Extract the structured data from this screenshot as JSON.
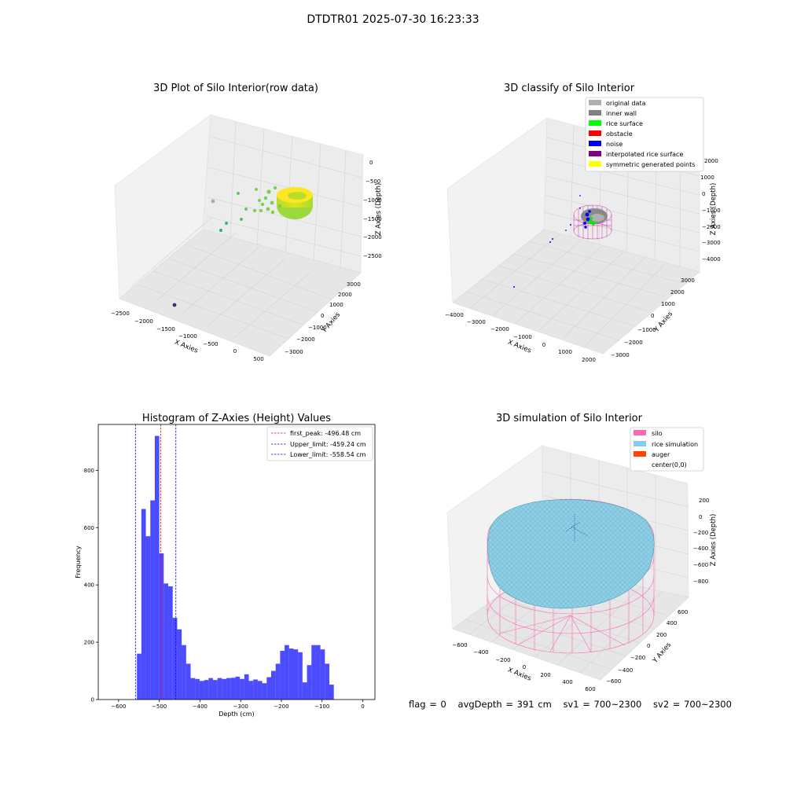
{
  "figure": {
    "suptitle": "DTDTR01 2025-07-30 16:23:33",
    "status": {
      "flag": "flag = 0",
      "avg_depth": "avgDepth = 391 cm",
      "sv1": "sv1 = 700~2300",
      "sv2": "sv2 = 700~2300"
    }
  },
  "chart_data": [
    {
      "type": "scatter",
      "title": "3D Plot of Silo Interior(row data)",
      "xlabel": "X Axies",
      "ylabel": "Y Axies",
      "zlabel": "Z Axies (Depth)",
      "x_ticks": [
        "−2500",
        "−2000",
        "−1500",
        "−1000",
        "−500",
        "0",
        "500"
      ],
      "y_ticks": [
        "−3000",
        "−2000",
        "−1000",
        "0",
        "1000",
        "2000",
        "3000"
      ],
      "z_ticks": [
        "0",
        "−500",
        "−1000",
        "−1500",
        "−2000",
        "−2500"
      ],
      "colors": {
        "low": "#1f9e89",
        "mid": "#7ad151",
        "high": "#fde725",
        "outlier": "#440154",
        "gray": "#aaaaaa"
      }
    },
    {
      "type": "scatter",
      "title": "3D classify of Silo Interior",
      "xlabel": "X Axies",
      "ylabel": "Y Axies",
      "zlabel": "Z Axies (Depth)",
      "x_ticks": [
        "−4000",
        "−3000",
        "−2000",
        "−1000",
        "0",
        "1000",
        "2000"
      ],
      "y_ticks": [
        "−3000",
        "−2000",
        "−1000",
        "0",
        "1000",
        "2000",
        "3000"
      ],
      "z_ticks": [
        "2000",
        "1000",
        "0",
        "−1000",
        "−2000",
        "−3000",
        "−4000"
      ],
      "legend_position": "upper right",
      "legend": [
        {
          "label": "original data",
          "color": "#b0b0b0"
        },
        {
          "label": "inner wall",
          "color": "#808080"
        },
        {
          "label": "rice surface",
          "color": "#00ff00"
        },
        {
          "label": "obstacle",
          "color": "#ff0000"
        },
        {
          "label": "noise",
          "color": "#0000ff"
        },
        {
          "label": "interpolated rice surface",
          "color": "#800080"
        },
        {
          "label": "symmetric generated points",
          "color": "#ffff00"
        }
      ]
    },
    {
      "type": "histogram",
      "title": "Histogram of Z-Axies (Height) Values",
      "xlabel": "Depth (cm)",
      "ylabel": "Frequency",
      "xlim": [
        -650,
        30
      ],
      "ylim": [
        0,
        960
      ],
      "x_ticks": [
        -600,
        -500,
        -400,
        -300,
        -200,
        -100,
        0
      ],
      "y_ticks": [
        0,
        200,
        400,
        600,
        800
      ],
      "bar_color": "#0000ff",
      "bin_width": 11,
      "bins": [
        {
          "x0": -555,
          "count": 160
        },
        {
          "x0": -544,
          "count": 665
        },
        {
          "x0": -533,
          "count": 570
        },
        {
          "x0": -522,
          "count": 695
        },
        {
          "x0": -511,
          "count": 920
        },
        {
          "x0": -500,
          "count": 510
        },
        {
          "x0": -489,
          "count": 405
        },
        {
          "x0": -478,
          "count": 395
        },
        {
          "x0": -467,
          "count": 285
        },
        {
          "x0": -456,
          "count": 245
        },
        {
          "x0": -445,
          "count": 190
        },
        {
          "x0": -434,
          "count": 125
        },
        {
          "x0": -423,
          "count": 75
        },
        {
          "x0": -412,
          "count": 72
        },
        {
          "x0": -401,
          "count": 65
        },
        {
          "x0": -390,
          "count": 68
        },
        {
          "x0": -379,
          "count": 75
        },
        {
          "x0": -368,
          "count": 68
        },
        {
          "x0": -357,
          "count": 75
        },
        {
          "x0": -346,
          "count": 72
        },
        {
          "x0": -335,
          "count": 75
        },
        {
          "x0": -324,
          "count": 76
        },
        {
          "x0": -313,
          "count": 80
        },
        {
          "x0": -302,
          "count": 72
        },
        {
          "x0": -291,
          "count": 88
        },
        {
          "x0": -280,
          "count": 65
        },
        {
          "x0": -269,
          "count": 70
        },
        {
          "x0": -258,
          "count": 65
        },
        {
          "x0": -247,
          "count": 57
        },
        {
          "x0": -236,
          "count": 78
        },
        {
          "x0": -225,
          "count": 100
        },
        {
          "x0": -214,
          "count": 125
        },
        {
          "x0": -203,
          "count": 170
        },
        {
          "x0": -192,
          "count": 190
        },
        {
          "x0": -181,
          "count": 178
        },
        {
          "x0": -170,
          "count": 175
        },
        {
          "x0": -159,
          "count": 165
        },
        {
          "x0": -148,
          "count": 60
        },
        {
          "x0": -137,
          "count": 120
        },
        {
          "x0": -126,
          "count": 190
        },
        {
          "x0": -115,
          "count": 190
        },
        {
          "x0": -104,
          "count": 175
        },
        {
          "x0": -93,
          "count": 125
        },
        {
          "x0": -82,
          "count": 52
        }
      ],
      "vlines": [
        {
          "label": "first_peak: -496.48 cm",
          "x": -496.48,
          "color": "#ff0000"
        },
        {
          "label": "Upper_limit: -459.24 cm",
          "x": -459.24,
          "color": "#0000ff"
        },
        {
          "label": "Lower_limit: -558.54 cm",
          "x": -558.54,
          "color": "#0000ff"
        }
      ],
      "legend_position": "upper right"
    },
    {
      "type": "surface",
      "title": "3D simulation of Silo Interior",
      "xlabel": "X Axies",
      "ylabel": "Y Axies",
      "zlabel": "Z Axies (Depth)",
      "x_ticks": [
        "−600",
        "−400",
        "−200",
        "0",
        "200",
        "400",
        "600"
      ],
      "y_ticks": [
        "−600",
        "−400",
        "−200",
        "0",
        "200",
        "400",
        "600"
      ],
      "z_ticks": [
        "200",
        "0",
        "−200",
        "−400",
        "−600",
        "−800"
      ],
      "legend_position": "upper right",
      "legend": [
        {
          "label": "silo",
          "color": "#ff69b4"
        },
        {
          "label": "rice simulation",
          "color": "#87ceeb"
        },
        {
          "label": "auger",
          "color": "#ff4500"
        },
        {
          "label": "center(0,0)",
          "color": "#ffffff"
        }
      ]
    }
  ]
}
